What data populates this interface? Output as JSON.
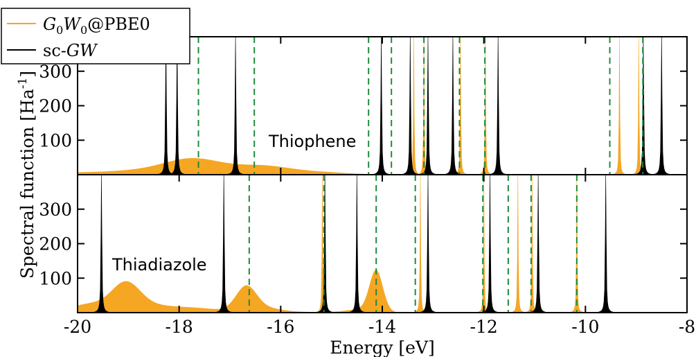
{
  "chart_data": {
    "type": "line",
    "xlabel": "Energy [eV]",
    "ylabel": "Spectral function [Ha",
    "ylabel_sup": "-1",
    "ylabel_close": "]",
    "xlim": [
      -20,
      -8
    ],
    "x_ticks": [
      -20,
      -18,
      -16,
      -14,
      -12,
      -10,
      -8
    ],
    "y_ticks": [
      100,
      200,
      300
    ],
    "legend": {
      "position": "top-left",
      "entries": [
        {
          "series": "g0w0",
          "label": "G0W0@PBE0",
          "color": "#f5a623"
        },
        {
          "series": "scgw",
          "label": "sc-GW",
          "color": "#000000"
        }
      ]
    },
    "panels": [
      {
        "id": "top",
        "annotation": "Thiophene",
        "ylim": [
          0,
          400
        ],
        "vlines_dashed": [
          -17.62,
          -16.52,
          -14.27,
          -13.82,
          -13.18,
          -12.48,
          -11.98,
          -9.52,
          -8.87
        ],
        "series": [
          {
            "name": "sc-GW",
            "peaks": [
              {
                "x": -18.26,
                "height": 400,
                "width": 0.05
              },
              {
                "x": -18.04,
                "height": 400,
                "width": 0.05
              },
              {
                "x": -16.89,
                "height": 400,
                "width": 0.05
              },
              {
                "x": -14.02,
                "height": 400,
                "width": 0.05
              },
              {
                "x": -13.45,
                "height": 400,
                "width": 0.05
              },
              {
                "x": -13.1,
                "height": 400,
                "width": 0.05
              },
              {
                "x": -12.61,
                "height": 400,
                "width": 0.05
              },
              {
                "x": -11.72,
                "height": 400,
                "width": 0.05
              },
              {
                "x": -8.86,
                "height": 400,
                "width": 0.05
              },
              {
                "x": -8.5,
                "height": 400,
                "width": 0.05
              }
            ]
          },
          {
            "name": "G0W0@PBE0",
            "baseline": 6,
            "broad": [
              {
                "x": -18.4,
                "height": 8,
                "width": 0.8
              },
              {
                "x": -17.7,
                "height": 36,
                "width": 0.55
              },
              {
                "x": -16.4,
                "height": 18,
                "width": 0.5
              },
              {
                "x": -15.7,
                "height": 6,
                "width": 0.6
              },
              {
                "x": -14.9,
                "height": 3,
                "width": 0.5
              }
            ],
            "peaks": [
              {
                "x": -13.38,
                "height": 400,
                "width": 0.04
              },
              {
                "x": -13.18,
                "height": 400,
                "width": 0.04
              },
              {
                "x": -12.46,
                "height": 400,
                "width": 0.04
              },
              {
                "x": -11.97,
                "height": 400,
                "width": 0.04
              },
              {
                "x": -9.33,
                "height": 400,
                "width": 0.04
              },
              {
                "x": -8.95,
                "height": 400,
                "width": 0.04
              }
            ]
          }
        ]
      },
      {
        "id": "bottom",
        "annotation": "Thiadiazole",
        "ylim": [
          0,
          400
        ],
        "vlines_dashed": [
          -16.62,
          -15.15,
          -14.12,
          -13.35,
          -12.02,
          -11.52,
          -11.07,
          -10.17
        ],
        "series": [
          {
            "name": "sc-GW",
            "peaks": [
              {
                "x": -19.53,
                "height": 400,
                "width": 0.05
              },
              {
                "x": -17.12,
                "height": 400,
                "width": 0.05
              },
              {
                "x": -15.13,
                "height": 400,
                "width": 0.05
              },
              {
                "x": -14.5,
                "height": 400,
                "width": 0.05
              },
              {
                "x": -13.1,
                "height": 400,
                "width": 0.05
              },
              {
                "x": -11.88,
                "height": 400,
                "width": 0.05
              },
              {
                "x": -10.93,
                "height": 400,
                "width": 0.05
              },
              {
                "x": -9.6,
                "height": 400,
                "width": 0.05
              }
            ]
          },
          {
            "name": "G0W0@PBE0",
            "baseline": 5,
            "broad": [
              {
                "x": -19.75,
                "height": 20,
                "width": 0.35
              },
              {
                "x": -19.05,
                "height": 78,
                "width": 0.28
              },
              {
                "x": -18.5,
                "height": 14,
                "width": 0.4
              },
              {
                "x": -17.7,
                "height": 8,
                "width": 0.4
              },
              {
                "x": -16.68,
                "height": 70,
                "width": 0.2
              },
              {
                "x": -16.3,
                "height": 10,
                "width": 0.3
              },
              {
                "x": -14.12,
                "height": 118,
                "width": 0.13
              },
              {
                "x": -14.4,
                "height": 10,
                "width": 0.3
              }
            ],
            "peaks": [
              {
                "x": -15.18,
                "height": 400,
                "width": 0.04
              },
              {
                "x": -13.25,
                "height": 400,
                "width": 0.04
              },
              {
                "x": -12.0,
                "height": 400,
                "width": 0.04
              },
              {
                "x": -11.33,
                "height": 400,
                "width": 0.04
              },
              {
                "x": -11.05,
                "height": 400,
                "width": 0.04
              },
              {
                "x": -10.17,
                "height": 400,
                "width": 0.04
              }
            ]
          }
        ]
      }
    ]
  }
}
